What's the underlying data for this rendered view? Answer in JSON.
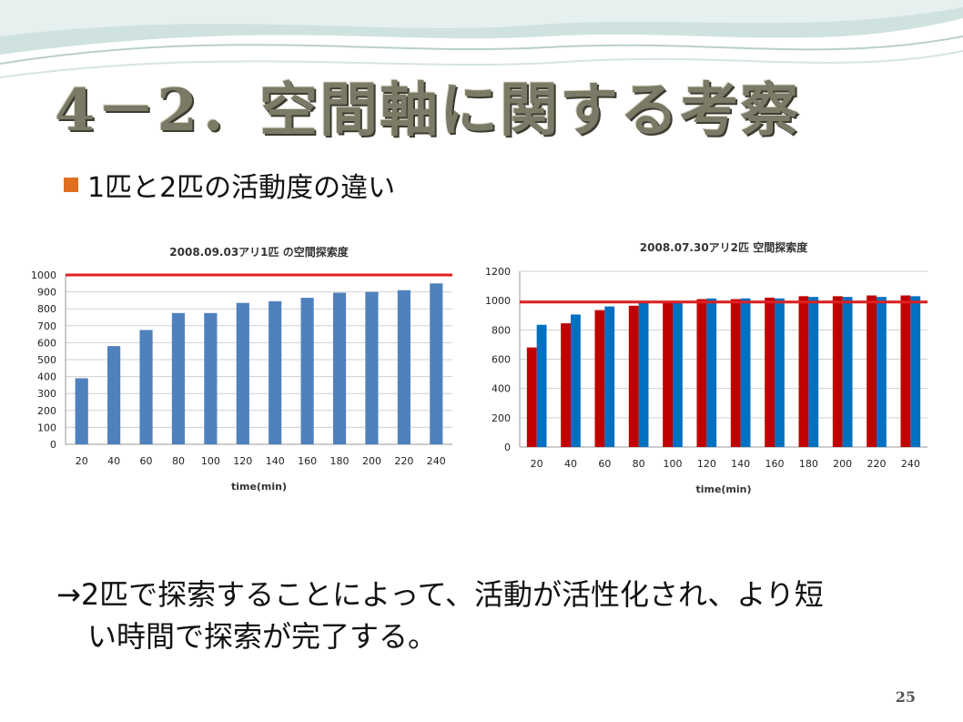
{
  "slide": {
    "title": "4－2．空間軸に関する考察",
    "bullet": "1匹と2匹の活動度の違い",
    "conclusion_line1": "→2匹で探索することによって、活動が活性化され、より短",
    "conclusion_line2": "い時間で探索が完了する。",
    "page_number": "25"
  },
  "colors": {
    "bullet": "#e07020",
    "chart1_bar": "#4f81bd",
    "reference_line": "#e02020",
    "chart2_series1": "#c00000",
    "chart2_series2": "#0070c0"
  },
  "chart_data": [
    {
      "type": "bar",
      "title": "2008.09.03アリ1匹 の空間探索度",
      "xlabel": "time(min)",
      "ylabel": "",
      "categories": [
        "20",
        "40",
        "60",
        "80",
        "100",
        "120",
        "140",
        "160",
        "180",
        "200",
        "220",
        "240"
      ],
      "series": [
        {
          "values": [
            390,
            580,
            675,
            775,
            775,
            835,
            845,
            865,
            895,
            900,
            910,
            950
          ]
        }
      ],
      "reference_line": 1000,
      "ylim": [
        0,
        1000
      ],
      "yticks": [
        0,
        100,
        200,
        300,
        400,
        500,
        600,
        700,
        800,
        900,
        1000
      ],
      "grid": true,
      "legend": "none"
    },
    {
      "type": "bar",
      "title": "2008.07.30アリ2匹 空間探索度",
      "xlabel": "time(min)",
      "ylabel": "",
      "categories": [
        "20",
        "40",
        "60",
        "80",
        "100",
        "120",
        "140",
        "160",
        "180",
        "200",
        "220",
        "240"
      ],
      "series": [
        {
          "values": [
            680,
            845,
            935,
            965,
            995,
            1010,
            1010,
            1020,
            1030,
            1030,
            1035,
            1035
          ]
        },
        {
          "values": [
            835,
            905,
            960,
            985,
            995,
            1015,
            1015,
            1015,
            1025,
            1025,
            1025,
            1030
          ]
        }
      ],
      "reference_line": 990,
      "ylim": [
        0,
        1200
      ],
      "yticks": [
        0,
        200,
        400,
        600,
        800,
        1000,
        1200
      ],
      "grid": true,
      "legend": "none"
    }
  ]
}
